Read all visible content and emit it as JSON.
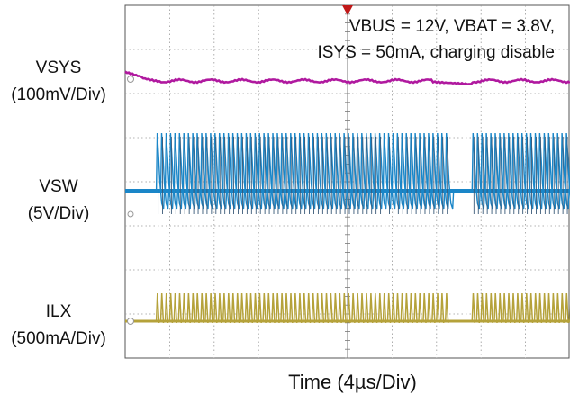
{
  "chart_data": {
    "type": "line",
    "title": "",
    "annotation": [
      "VBUS = 12V, VBAT = 3.8V,",
      "ISYS = 50mA, charging disable"
    ],
    "xlabel": "Time (4µs/Div)",
    "ylabel": "",
    "x_divisions": 10,
    "y_divisions": 8,
    "grid": true,
    "trigger_marker": "top",
    "series": [
      {
        "name_lines": [
          "VSYS",
          "(100mV/Div)"
        ],
        "color": "#b0199f",
        "waveform": "dc-ripple",
        "burst_windows_div": [
          [
            0.5,
            7.5
          ],
          [
            7.7,
            10
          ]
        ]
      },
      {
        "name_lines": [
          "VSW",
          "(5V/Div)"
        ],
        "color": "#1a86c8",
        "waveform": "switching-pulses",
        "burst_windows_div": [
          [
            0.7,
            7.2
          ],
          [
            7.7,
            10
          ]
        ],
        "pulse_period_div": 0.1
      },
      {
        "name_lines": [
          "ILX",
          "(500mA/Div)"
        ],
        "color": "#b5a23a",
        "waveform": "current-pulses",
        "burst_windows_div": [
          [
            0.7,
            7.2
          ],
          [
            7.7,
            10
          ]
        ],
        "pulse_period_div": 0.1
      }
    ]
  }
}
